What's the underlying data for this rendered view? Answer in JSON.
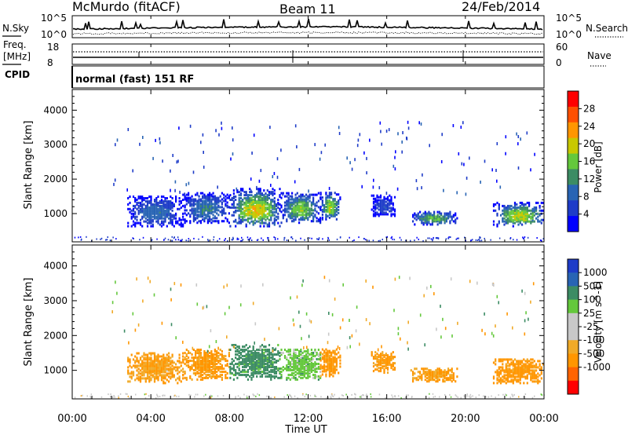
{
  "header": {
    "station": "McMurdo (fitACF)",
    "beam": "Beam 11",
    "date": "24/Feb/2014"
  },
  "noise_panel": {
    "left_label": "N.Sky",
    "right_label": "N.Search",
    "left_ticks": [
      "10^5",
      "10^0"
    ],
    "right_ticks": [
      "10^5",
      "10^0"
    ]
  },
  "freq_panel": {
    "left_label_1": "Freq.",
    "left_label_2": "[MHz]",
    "right_label": "Nave",
    "left_ticks": [
      "18",
      "8"
    ],
    "right_ticks": [
      "60",
      "0"
    ]
  },
  "cpid_panel": {
    "label": "CPID",
    "text": "normal (fast) 151 RF"
  },
  "x_axis": {
    "label": "Time UT",
    "ticks": [
      "00:00",
      "04:00",
      "08:00",
      "12:00",
      "16:00",
      "20:00",
      "00:00"
    ]
  },
  "colors": {
    "power": [
      "#0000ff",
      "#1e3cc8",
      "#2864b4",
      "#3c8c64",
      "#64c83c",
      "#c8c800",
      "#ff9600",
      "#ff5000",
      "#ff0000"
    ],
    "velocity": [
      "#ff0000",
      "#ff6400",
      "#ff9600",
      "#f0aa28",
      "#c8c8c8",
      "#c8c8c8",
      "#64c83c",
      "#3c8c64",
      "#2864b4",
      "#1e3cc8"
    ]
  },
  "chart_data": [
    {
      "type": "heatmap",
      "title": "",
      "xlabel": "Time UT",
      "ylabel": "Slant Range [km]",
      "xlim": [
        0,
        24
      ],
      "ylim": [
        180,
        4600
      ],
      "y_ticks": [
        "1000",
        "2000",
        "3000",
        "4000"
      ],
      "colorbar": {
        "label": "Power [dB]",
        "ticks": [
          "4",
          "8",
          "12",
          "16",
          "20",
          "24",
          "28"
        ],
        "range": [
          0,
          32
        ]
      },
      "echo_regions": [
        {
          "t0": 2.8,
          "t1": 5.6,
          "r0": 600,
          "r1": 1500,
          "peak": 14
        },
        {
          "t0": 5.6,
          "t1": 8.0,
          "r0": 700,
          "r1": 1600,
          "peak": 16
        },
        {
          "t0": 8.0,
          "t1": 10.6,
          "r0": 600,
          "r1": 1700,
          "peak": 30
        },
        {
          "t0": 10.6,
          "t1": 12.6,
          "r0": 700,
          "r1": 1600,
          "peak": 24
        },
        {
          "t0": 12.6,
          "t1": 13.6,
          "r0": 800,
          "r1": 1600,
          "peak": 26
        },
        {
          "t0": 15.2,
          "t1": 16.4,
          "r0": 900,
          "r1": 1500,
          "peak": 10
        },
        {
          "t0": 17.2,
          "t1": 19.6,
          "r0": 650,
          "r1": 1050,
          "peak": 22
        },
        {
          "t0": 21.4,
          "t1": 24.0,
          "r0": 600,
          "r1": 1300,
          "peak": 28
        }
      ]
    },
    {
      "type": "heatmap",
      "title": "",
      "xlabel": "Time UT",
      "ylabel": "Slant Range [km]",
      "xlim": [
        0,
        24
      ],
      "ylim": [
        180,
        4600
      ],
      "y_ticks": [
        "1000",
        "2000",
        "3000",
        "4000"
      ],
      "colorbar": {
        "label": "Velocity [m s^-1]",
        "ticks": [
          "1000",
          "500",
          "100",
          "25",
          "-25",
          "-100",
          "-500",
          "-1000"
        ],
        "range": [
          -1200,
          1200
        ]
      },
      "echo_regions": [
        {
          "t0": 2.8,
          "t1": 5.6,
          "r0": 600,
          "r1": 1500,
          "v": -120
        },
        {
          "t0": 5.6,
          "t1": 8.0,
          "r0": 700,
          "r1": 1600,
          "v": -150
        },
        {
          "t0": 8.0,
          "t1": 10.6,
          "r0": 700,
          "r1": 1700,
          "v": 200
        },
        {
          "t0": 10.6,
          "t1": 12.6,
          "r0": 700,
          "r1": 1600,
          "v": 60
        },
        {
          "t0": 12.6,
          "t1": 13.6,
          "r0": 800,
          "r1": 1600,
          "v": -200
        },
        {
          "t0": 15.2,
          "t1": 16.4,
          "r0": 900,
          "r1": 1500,
          "v": -150
        },
        {
          "t0": 17.2,
          "t1": 19.6,
          "r0": 650,
          "r1": 1050,
          "v": -120
        },
        {
          "t0": 21.4,
          "t1": 24.0,
          "r0": 600,
          "r1": 1300,
          "v": -200
        }
      ]
    }
  ]
}
